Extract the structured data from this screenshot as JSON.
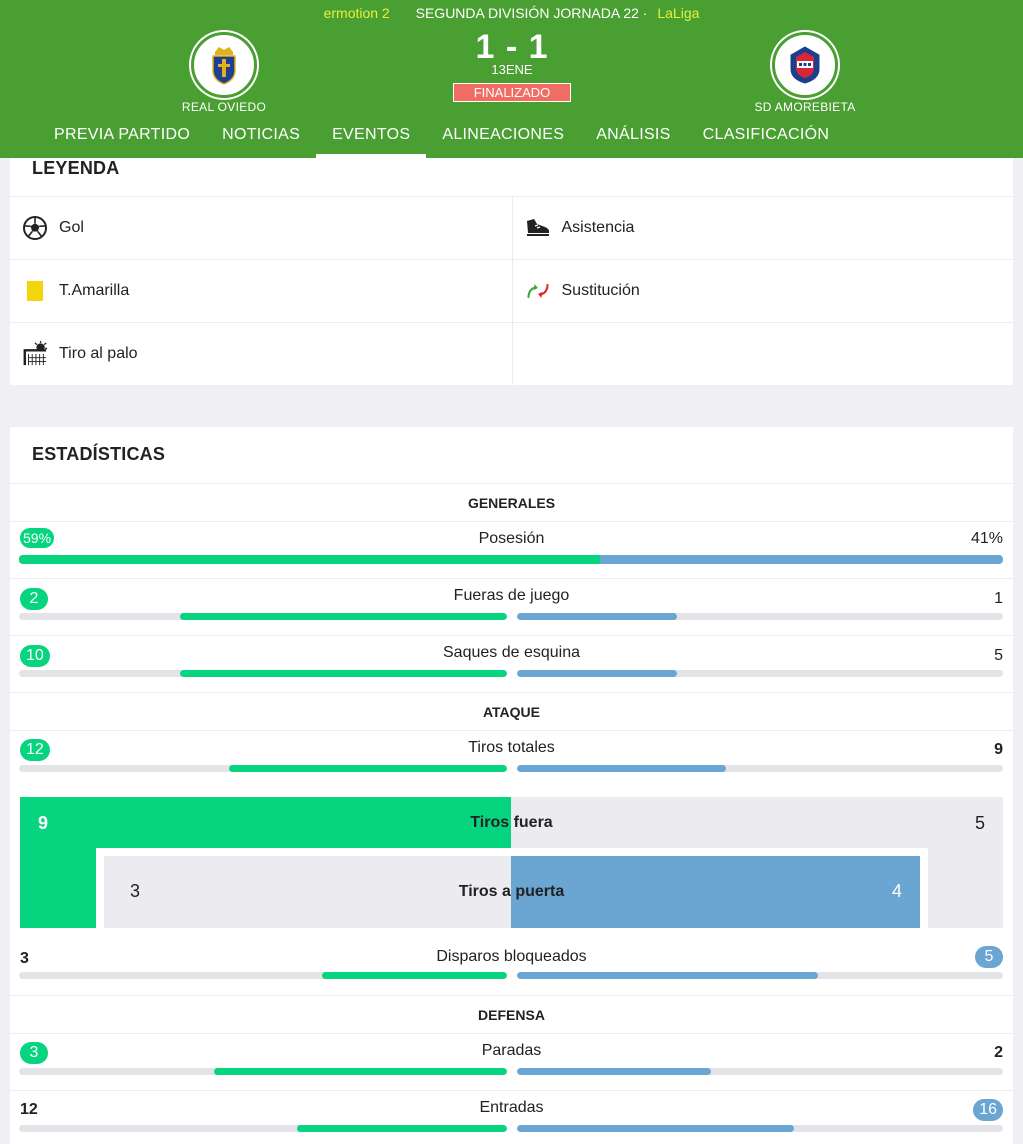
{
  "header": {
    "sponsor": "ermotion 2",
    "competition": "SEGUNDA DIVISIÓN JORNADA 22 ·",
    "league": "LaLiga",
    "home_team": "REAL OVIEDO",
    "away_team": "SD AMOREBIETA",
    "score": "1 - 1",
    "date": "13ENE",
    "status": "FINALIZADO",
    "colors": {
      "header_bg": "#4a9f32",
      "status_bg": "#f06d63",
      "sponsor_text": "#e8f03c"
    }
  },
  "tabs": [
    {
      "label": "PREVIA PARTIDO",
      "active": false
    },
    {
      "label": "NOTICIAS",
      "active": false
    },
    {
      "label": "EVENTOS",
      "active": true
    },
    {
      "label": "ALINEACIONES",
      "active": false
    },
    {
      "label": "ANÁLISIS",
      "active": false
    },
    {
      "label": "CLASIFICACIÓN",
      "active": false
    }
  ],
  "legend": {
    "title": "LEYENDA",
    "items": [
      {
        "label": "Gol",
        "icon": "ball-icon"
      },
      {
        "label": "Asistencia",
        "icon": "boot-icon"
      },
      {
        "label": "T.Amarilla",
        "icon": "yellow-card-icon"
      },
      {
        "label": "Sustitución",
        "icon": "substitution-icon"
      },
      {
        "label": "Tiro al palo",
        "icon": "post-shot-icon"
      }
    ]
  },
  "stats": {
    "title": "ESTADÍSTICAS",
    "colors": {
      "home": "#06d47e",
      "away": "#6ba5d2"
    },
    "sections": {
      "generales": "GENERALES",
      "ataque": "ATAQUE",
      "defensa": "DEFENSA"
    },
    "posesion": {
      "label": "Posesión",
      "home": "59%",
      "away": "41%",
      "home_share": 59
    },
    "fueras_de_juego": {
      "label": "Fueras de juego",
      "home": "2",
      "away": "1"
    },
    "saques_de_esquina": {
      "label": "Saques de esquina",
      "home": "10",
      "away": "5"
    },
    "tiros_totales": {
      "label": "Tiros totales",
      "home": "12",
      "away": "9"
    },
    "tiros_fuera": {
      "label": "Tiros fuera",
      "home": "9",
      "away": "5"
    },
    "tiros_a_puerta": {
      "label": "Tiros a puerta",
      "home": "3",
      "away": "4"
    },
    "disparos_bloqueados": {
      "label": "Disparos bloqueados",
      "home": "3",
      "away": "5"
    },
    "paradas": {
      "label": "Paradas",
      "home": "3",
      "away": "2"
    },
    "entradas": {
      "label": "Entradas",
      "home": "12",
      "away": "16"
    }
  }
}
